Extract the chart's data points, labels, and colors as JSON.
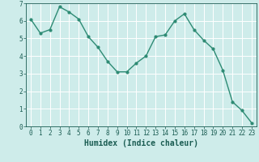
{
  "x": [
    0,
    1,
    2,
    3,
    4,
    5,
    6,
    7,
    8,
    9,
    10,
    11,
    12,
    13,
    14,
    15,
    16,
    17,
    18,
    19,
    20,
    21,
    22,
    23
  ],
  "y": [
    6.1,
    5.3,
    5.5,
    6.8,
    6.5,
    6.1,
    5.1,
    4.5,
    3.7,
    3.1,
    3.1,
    3.6,
    4.0,
    5.1,
    5.2,
    6.0,
    6.4,
    5.5,
    4.9,
    4.4,
    3.2,
    1.4,
    0.9,
    0.2
  ],
  "line_color": "#2e8b74",
  "marker": "o",
  "marker_size": 2.0,
  "linewidth": 1.0,
  "bg_color": "#ceecea",
  "grid_color": "#ffffff",
  "xlabel": "Humidex (Indice chaleur)",
  "xlabel_fontsize": 7,
  "xlabel_color": "#1a5c52",
  "tick_color": "#1a5c52",
  "tick_fontsize": 5.5,
  "ylim": [
    0,
    7
  ],
  "xlim": [
    -0.5,
    23.5
  ],
  "yticks": [
    0,
    1,
    2,
    3,
    4,
    5,
    6,
    7
  ],
  "xticks": [
    0,
    1,
    2,
    3,
    4,
    5,
    6,
    7,
    8,
    9,
    10,
    11,
    12,
    13,
    14,
    15,
    16,
    17,
    18,
    19,
    20,
    21,
    22,
    23
  ]
}
